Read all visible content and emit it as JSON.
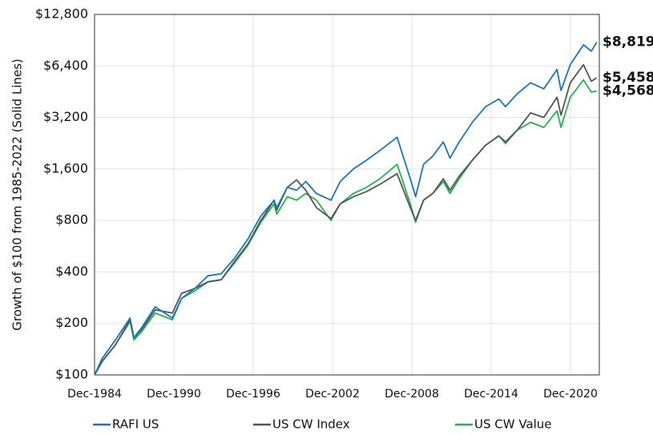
{
  "chart_data": {
    "type": "line",
    "y_label": "Growth of $100 from 1985-2022 (Solid Lines)",
    "log_scale": true,
    "grid": true,
    "legend": "bottom",
    "x": [
      1984.917,
      1985.5,
      1986.5,
      1987.6,
      1987.9,
      1988.5,
      1989.5,
      1990.8,
      1991.5,
      1992.5,
      1993.5,
      1994.5,
      1995.5,
      1996.5,
      1997.5,
      1998.5,
      1998.7,
      1999.5,
      2000.2,
      2000.9,
      2001.7,
      2002.8,
      2003.5,
      2004.5,
      2005.5,
      2006.5,
      2007.8,
      2008.8,
      2009.2,
      2009.8,
      2010.5,
      2011.3,
      2011.8,
      2012.5,
      2013.5,
      2014.5,
      2015.5,
      2016.0,
      2016.9,
      2017.9,
      2018.9,
      2019.9,
      2020.2,
      2020.9,
      2021.9,
      2022.5,
      2022.9
    ],
    "series": [
      {
        "name": "RAFI US",
        "color": "#1a75bb",
        "end_label": "$8,819",
        "values": [
          100,
          125,
          160,
          215,
          165,
          190,
          250,
          215,
          280,
          320,
          380,
          390,
          480,
          620,
          850,
          1050,
          950,
          1250,
          1200,
          1350,
          1150,
          1050,
          1350,
          1600,
          1800,
          2050,
          2450,
          1400,
          1100,
          1700,
          1900,
          2300,
          1850,
          2300,
          3000,
          3700,
          4100,
          3700,
          4400,
          5100,
          4700,
          6100,
          4600,
          6500,
          8500,
          7800,
          8819
        ]
      },
      {
        "name": "US CW Index",
        "color": "#555555",
        "end_label": "$5,458",
        "values": [
          100,
          120,
          150,
          210,
          165,
          185,
          240,
          230,
          300,
          320,
          350,
          360,
          460,
          580,
          800,
          1050,
          920,
          1250,
          1380,
          1200,
          950,
          820,
          1000,
          1100,
          1180,
          1300,
          1500,
          950,
          800,
          1050,
          1150,
          1400,
          1200,
          1450,
          1800,
          2200,
          2500,
          2300,
          2700,
          3400,
          3200,
          4200,
          3300,
          5100,
          6500,
          5200,
          5458
        ]
      },
      {
        "name": "US CW Value",
        "color": "#22b34a",
        "end_label": "$4,568",
        "values": [
          100,
          120,
          150,
          205,
          160,
          180,
          230,
          210,
          280,
          310,
          350,
          360,
          450,
          570,
          780,
          1000,
          870,
          1100,
          1050,
          1150,
          1050,
          800,
          1000,
          1150,
          1250,
          1400,
          1700,
          1000,
          780,
          1050,
          1150,
          1350,
          1150,
          1400,
          1800,
          2200,
          2500,
          2250,
          2700,
          3000,
          2800,
          3500,
          2800,
          4200,
          5300,
          4500,
          4568
        ]
      }
    ],
    "xlim": [
      1984.917,
      2023.1
    ],
    "xticks": [
      {
        "value": 1984.917,
        "label": "Dec-1984"
      },
      {
        "value": 1990.917,
        "label": "Dec-1990"
      },
      {
        "value": 1996.917,
        "label": "Dec-1996"
      },
      {
        "value": 2002.917,
        "label": "Dec-2002"
      },
      {
        "value": 2008.917,
        "label": "Dec-2008"
      },
      {
        "value": 2014.917,
        "label": "Dec-2014"
      },
      {
        "value": 2020.917,
        "label": "Dec-2020"
      }
    ],
    "ylim": [
      100,
      12800
    ],
    "yticks": [
      {
        "value": 100,
        "label": "$100"
      },
      {
        "value": 200,
        "label": "$200"
      },
      {
        "value": 400,
        "label": "$400"
      },
      {
        "value": 800,
        "label": "$800"
      },
      {
        "value": 1600,
        "label": "$1,600"
      },
      {
        "value": 3200,
        "label": "$3,200"
      },
      {
        "value": 6400,
        "label": "$6,400"
      },
      {
        "value": 12800,
        "label": "$12,800"
      }
    ]
  }
}
